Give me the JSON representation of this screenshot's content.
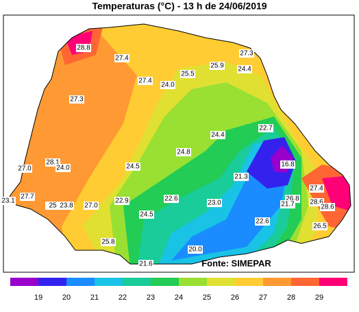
{
  "header": {
    "title": "Temperaturas  (°C)  -  13  h de  24/06/2019"
  },
  "stations": [
    "28.8",
    "27.4",
    "27.3",
    "25.9",
    "24.4",
    "25.5",
    "27.4",
    "24.0",
    "27.3",
    "22.7",
    "24.4",
    "24.8",
    "16.8",
    "28.1",
    "24.0",
    "27.0",
    "24.5",
    "21.3",
    "27.4",
    "27.7",
    "23.1",
    "25",
    "23.8",
    "27.0",
    "22.9",
    "22.6",
    "23.0",
    "26.8",
    "21.7",
    "28.6",
    "28.6",
    "24.5",
    "22.6",
    "26.5",
    "25.8",
    "20.0",
    "21.6"
  ],
  "source": "Fonte: SIMEPAR",
  "colorbar": {
    "labels": [
      19,
      20,
      21,
      22,
      23,
      24,
      25,
      26,
      27,
      28,
      29
    ],
    "colors": [
      "#9900cc",
      "#3322ee",
      "#1a8cff",
      "#19c3e6",
      "#19cc99",
      "#22cc55",
      "#99e033",
      "#e0e033",
      "#ffcc33",
      "#ff9933",
      "#ff6633",
      "#ff0077"
    ]
  }
}
